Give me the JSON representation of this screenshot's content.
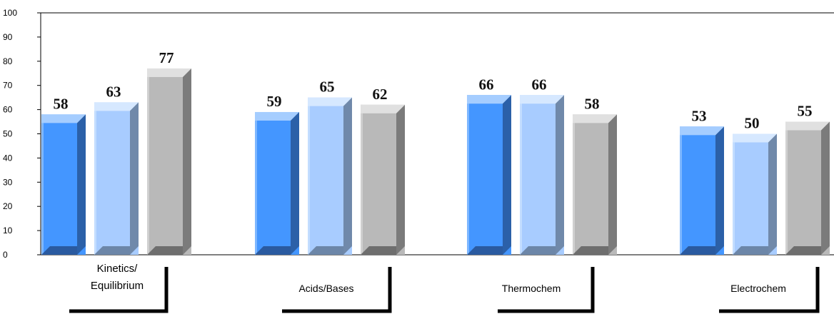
{
  "chart_data": {
    "type": "bar",
    "categories": [
      "Kinetics/\nEquilibrium",
      "Acids/Bases",
      "Thermochem",
      "Electrochem"
    ],
    "series": [
      {
        "values": [
          58,
          59,
          66,
          53
        ]
      },
      {
        "values": [
          63,
          65,
          66,
          50
        ]
      },
      {
        "values": [
          77,
          62,
          58,
          55
        ]
      }
    ],
    "ylim": [
      0,
      100
    ],
    "yticks": [
      0,
      10,
      20,
      30,
      40,
      50,
      60,
      70,
      80,
      90,
      100
    ],
    "grid": false,
    "legend": "none",
    "style": "3d",
    "colors": {
      "series": [
        {
          "front": "#4496ff",
          "top": "#a5cdff",
          "side": "#2b60a8",
          "bottom": "#2a5aa0"
        },
        {
          "front": "#a8ccff",
          "top": "#d6e8ff",
          "side": "#7089aa",
          "bottom": "#6c86a8"
        },
        {
          "front": "#b9b9b9",
          "top": "#e0e0e0",
          "side": "#7b7b7b",
          "bottom": "#6e6e6e"
        }
      ],
      "axis": "#000000",
      "bracket": "#000000"
    }
  }
}
